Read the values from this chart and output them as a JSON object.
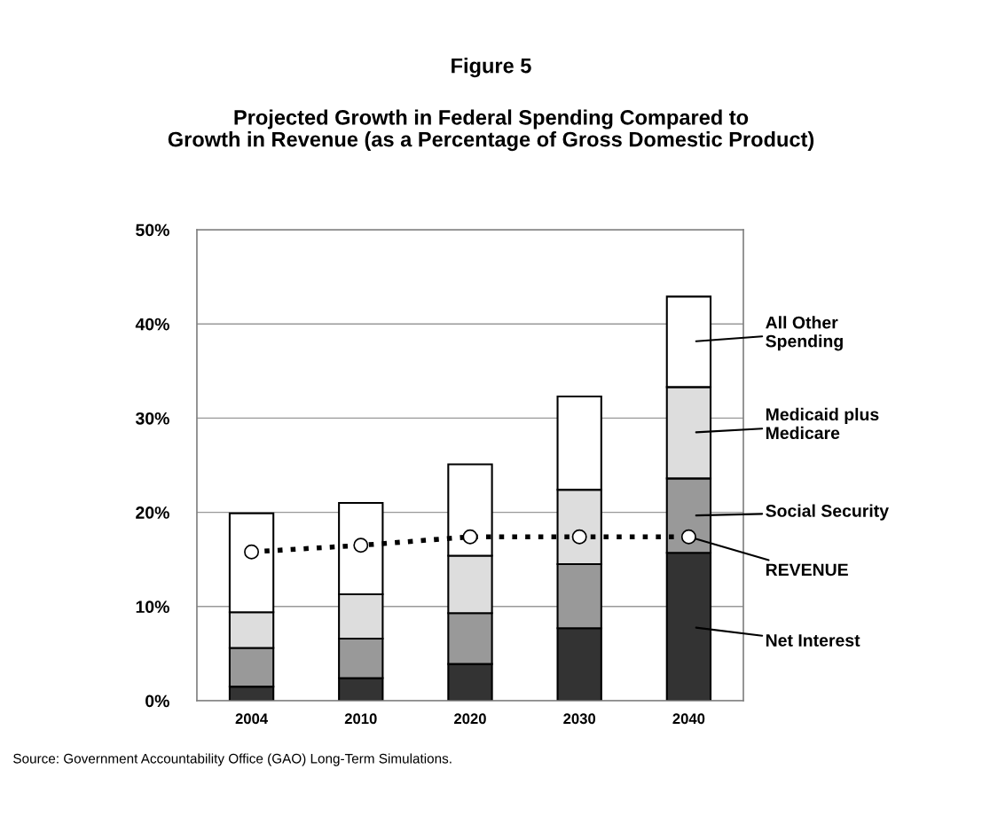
{
  "chart_data": {
    "type": "bar",
    "stacked": true,
    "title": "Figure 5",
    "subtitle": "Projected Growth in Federal Spending Compared to\nGrowth in Revenue (as a Percentage of Gross Domestic Product)",
    "categories": [
      "2004",
      "2010",
      "2020",
      "2030",
      "2040"
    ],
    "series": [
      {
        "name": "Net Interest",
        "color": "#333333",
        "values": [
          1.5,
          2.4,
          3.9,
          7.7,
          15.7
        ]
      },
      {
        "name": "Social Security",
        "color": "#999999",
        "values": [
          4.1,
          4.2,
          5.4,
          6.8,
          7.9
        ]
      },
      {
        "name": "Medicaid plus\nMedicare",
        "color": "#dddddd",
        "values": [
          3.8,
          4.7,
          6.1,
          7.9,
          9.7
        ]
      },
      {
        "name": "All Other\nSpending",
        "color": "#ffffff",
        "values": [
          10.5,
          9.7,
          9.7,
          9.9,
          9.6
        ]
      },
      {
        "name": "REVENUE",
        "type": "line",
        "color": "#000000",
        "marker": "circle",
        "line_style": "dotted",
        "values": [
          15.8,
          16.5,
          17.4,
          17.4,
          17.4
        ]
      }
    ],
    "ylim": [
      0,
      50
    ],
    "yticks": [
      {
        "value": 0,
        "label": "0%"
      },
      {
        "value": 10,
        "label": "10%"
      },
      {
        "value": 20,
        "label": "20%"
      },
      {
        "value": 30,
        "label": "30%"
      },
      {
        "value": 40,
        "label": "40%"
      },
      {
        "value": 50,
        "label": "50%"
      }
    ],
    "grid": "y",
    "legend": "right",
    "annotations": [
      "Source: Government Accountability Office (GAO) Long-Term Simulations."
    ]
  }
}
